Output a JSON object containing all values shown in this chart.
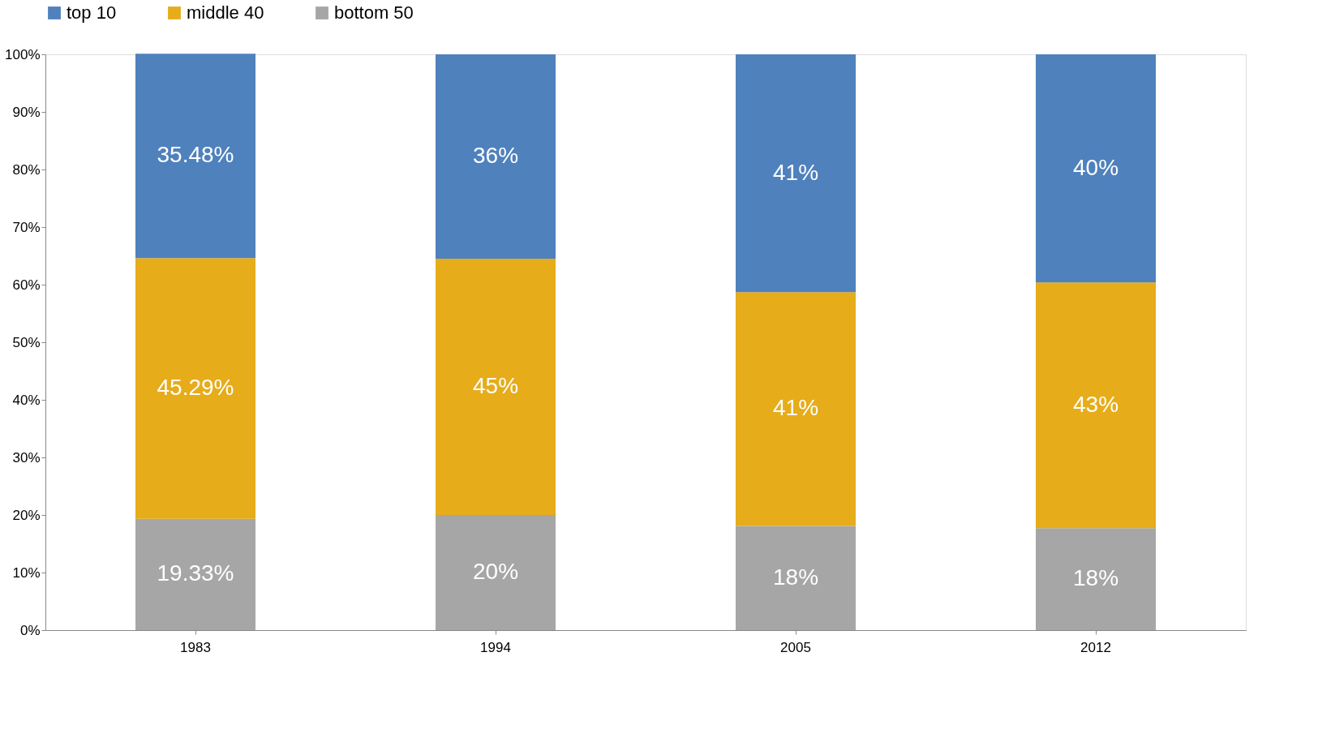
{
  "chart_data": {
    "type": "bar",
    "stacked": true,
    "categories": [
      "1983",
      "1994",
      "2005",
      "2012"
    ],
    "series": [
      {
        "name": "bottom 50",
        "color": "#a6a6a6",
        "values": [
          19.33,
          20.0,
          18.1,
          17.7
        ],
        "value_labels": [
          "19.33%",
          "20%",
          "18%",
          "18%"
        ]
      },
      {
        "name": "middle 40",
        "color": "#e6ac1a",
        "values": [
          45.29,
          44.5,
          40.6,
          42.7
        ],
        "value_labels": [
          "45.29%",
          "45%",
          "41%",
          "43%"
        ]
      },
      {
        "name": "top 10",
        "color": "#4f81bd",
        "values": [
          35.48,
          35.5,
          41.3,
          39.6
        ],
        "value_labels": [
          "35.48%",
          "36%",
          "41%",
          "40%"
        ]
      }
    ],
    "ylim": [
      0,
      100
    ],
    "yticks": [
      {
        "value": 0,
        "label": "0%"
      },
      {
        "value": 10,
        "label": "10%"
      },
      {
        "value": 20,
        "label": "20%"
      },
      {
        "value": 30,
        "label": "30%"
      },
      {
        "value": 40,
        "label": "40%"
      },
      {
        "value": 50,
        "label": "50%"
      },
      {
        "value": 60,
        "label": "60%"
      },
      {
        "value": 70,
        "label": "70%"
      },
      {
        "value": 80,
        "label": "80%"
      },
      {
        "value": 90,
        "label": "90%"
      },
      {
        "value": 100,
        "label": "100%"
      }
    ],
    "grid": false,
    "legend": "top"
  }
}
